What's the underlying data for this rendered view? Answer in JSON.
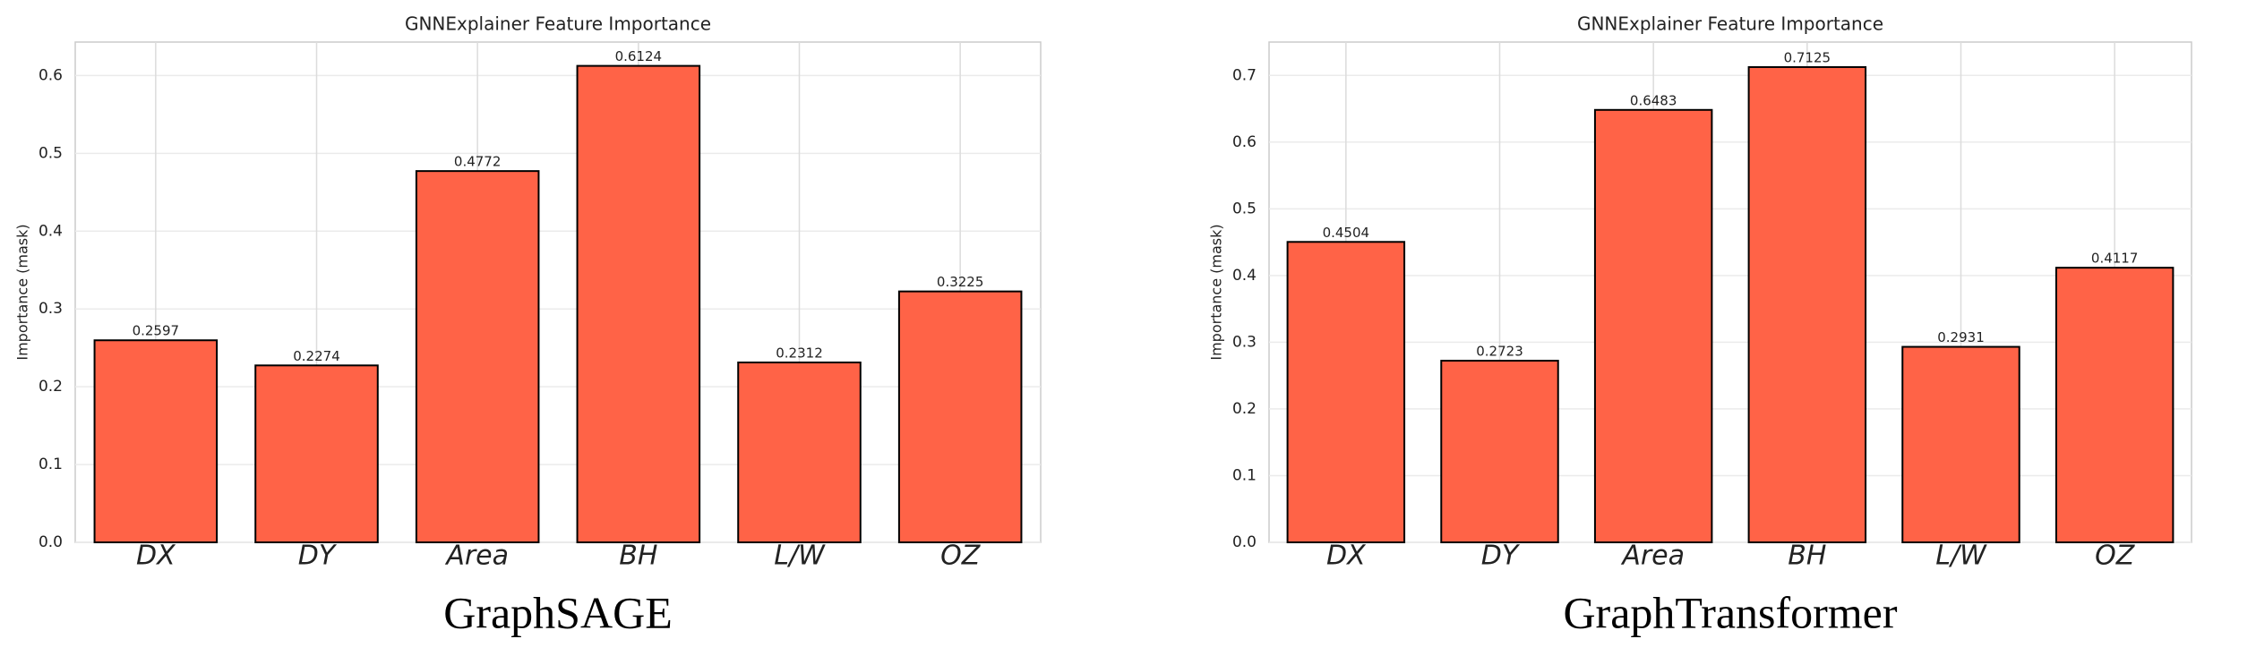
{
  "chart_data": [
    {
      "type": "bar",
      "title": "GNNExplainer Feature Importance",
      "ylabel": "Importance (mask)",
      "caption": "GraphSAGE",
      "categories": [
        "DX",
        "DY",
        "Area",
        "BH",
        "L/W",
        "OZ"
      ],
      "values": [
        0.2597,
        0.2274,
        0.4772,
        0.6124,
        0.2312,
        0.3225
      ],
      "color": "#ff6347",
      "edgecolor": "#000000",
      "ylim": [
        0,
        0.643
      ],
      "yticks": [
        {
          "value": 0,
          "label": "0.0"
        },
        0.1,
        0.2,
        0.3,
        0.4,
        0.5,
        0.6
      ],
      "grid": true
    },
    {
      "type": "bar",
      "title": "GNNExplainer Feature Importance",
      "ylabel": "Importance (mask)",
      "caption": "GraphTransformer",
      "categories": [
        "DX",
        "DY",
        "Area",
        "BH",
        "L/W",
        "OZ"
      ],
      "values": [
        0.4504,
        0.2723,
        0.6483,
        0.7125,
        0.2931,
        0.4117
      ],
      "color": "#ff6347",
      "edgecolor": "#000000",
      "ylim": [
        0,
        0.75
      ],
      "yticks": [
        {
          "value": 0,
          "label": "0.0"
        },
        0.1,
        0.2,
        0.3,
        0.4,
        0.5,
        0.6,
        0.7
      ],
      "grid": true
    }
  ]
}
